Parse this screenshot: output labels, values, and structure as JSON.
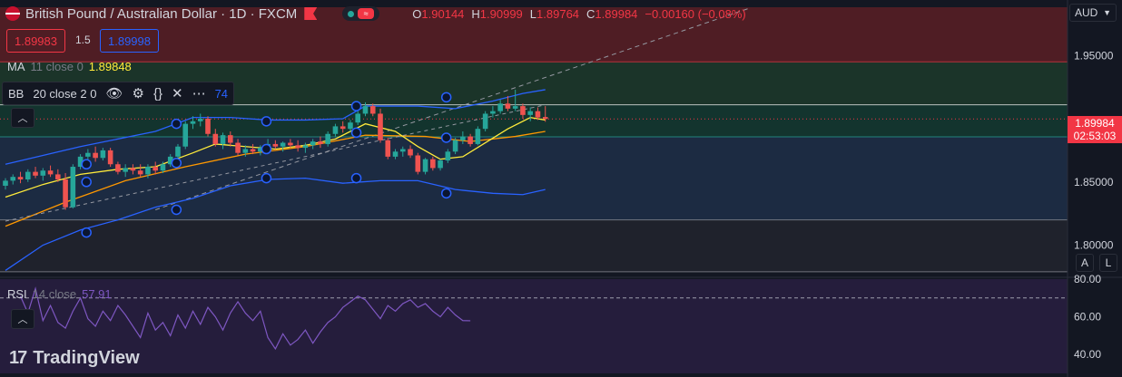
{
  "header": {
    "symbol": "British Pound / Australian Dollar · 1D · FXCM",
    "ohlc": {
      "o_label": "O",
      "o": "1.90144",
      "h_label": "H",
      "h": "1.90999",
      "l_label": "L",
      "l": "1.89764",
      "c_label": "C",
      "c": "1.89984",
      "chg": "−0.00160 (−0.08%)"
    }
  },
  "trade": {
    "sell": "1.89983",
    "spread": "1.5",
    "buy": "1.89998"
  },
  "indicators": {
    "ma": {
      "name": "MA",
      "params": "11 close 0",
      "value": "1.89848"
    },
    "bb": {
      "name": "BB",
      "params": "20 close 2 0",
      "value": "74"
    },
    "rsi": {
      "name": "RSI",
      "params": "14 close",
      "value": "57.91"
    }
  },
  "axis": {
    "currency": "AUD",
    "price_ticks": [
      "1.95000",
      "1.85000",
      "1.80000"
    ],
    "rsi_ticks": [
      "80.00",
      "60.00",
      "40.00"
    ],
    "last_price": "1.89984",
    "countdown": "02:53:03",
    "auto_label": "A",
    "log_label": "L"
  },
  "branding": {
    "name": "TradingView"
  },
  "colors": {
    "up": "#26a69a",
    "down": "#ef5350",
    "bb": "#2962ff",
    "ma": "#ffeb3b",
    "ma2": "#ff9800",
    "rsi": "#7e57c2",
    "accent": "#f23645"
  },
  "chart_data": {
    "type": "candlestick",
    "y_range": [
      1.776,
      1.9882
    ],
    "rsi_range": [
      30,
      80
    ],
    "zones": [
      {
        "from": 1.945,
        "to": 1.9882,
        "color": "#5a1f25"
      },
      {
        "from": 1.911,
        "to": 1.945,
        "color": "#1d3a2a"
      },
      {
        "from": 1.8857,
        "to": 1.911,
        "color": "#143a30"
      },
      {
        "from": 1.82,
        "to": 1.8857,
        "color": "#1e2f48"
      },
      {
        "from": 1.779,
        "to": 1.82,
        "color": "#22252e"
      }
    ],
    "hlines": [
      1.945,
      1.911,
      1.8857,
      1.82,
      1.779
    ],
    "candles": [
      [
        1.847,
        1.853,
        1.844,
        1.851
      ],
      [
        1.851,
        1.856,
        1.848,
        1.854
      ],
      [
        1.854,
        1.858,
        1.849,
        1.852
      ],
      [
        1.852,
        1.86,
        1.85,
        1.858
      ],
      [
        1.858,
        1.862,
        1.853,
        1.855
      ],
      [
        1.855,
        1.861,
        1.851,
        1.859
      ],
      [
        1.859,
        1.863,
        1.854,
        1.856
      ],
      [
        1.856,
        1.86,
        1.85,
        1.852
      ],
      [
        1.852,
        1.857,
        1.828,
        1.83
      ],
      [
        1.83,
        1.864,
        1.829,
        1.862
      ],
      [
        1.862,
        1.872,
        1.86,
        1.87
      ],
      [
        1.87,
        1.876,
        1.866,
        1.873
      ],
      [
        1.873,
        1.878,
        1.866,
        1.869
      ],
      [
        1.869,
        1.877,
        1.867,
        1.875
      ],
      [
        1.875,
        1.877,
        1.862,
        1.864
      ],
      [
        1.864,
        1.866,
        1.856,
        1.858
      ],
      [
        1.858,
        1.864,
        1.854,
        1.861
      ],
      [
        1.861,
        1.864,
        1.856,
        1.859
      ],
      [
        1.859,
        1.864,
        1.854,
        1.856
      ],
      [
        1.856,
        1.864,
        1.853,
        1.862
      ],
      [
        1.862,
        1.866,
        1.856,
        1.859
      ],
      [
        1.859,
        1.866,
        1.857,
        1.864
      ],
      [
        1.864,
        1.872,
        1.862,
        1.87
      ],
      [
        1.87,
        1.88,
        1.868,
        1.878
      ],
      [
        1.878,
        1.898,
        1.876,
        1.896
      ],
      [
        1.896,
        1.902,
        1.892,
        1.898
      ],
      [
        1.898,
        1.904,
        1.894,
        1.9
      ],
      [
        1.9,
        1.902,
        1.886,
        1.888
      ],
      [
        1.888,
        1.892,
        1.878,
        1.88
      ],
      [
        1.88,
        1.889,
        1.876,
        1.887
      ],
      [
        1.887,
        1.89,
        1.878,
        1.881
      ],
      [
        1.881,
        1.884,
        1.871,
        1.873
      ],
      [
        1.873,
        1.879,
        1.87,
        1.876
      ],
      [
        1.876,
        1.88,
        1.872,
        1.874
      ],
      [
        1.874,
        1.879,
        1.871,
        1.877
      ],
      [
        1.877,
        1.884,
        1.875,
        1.88
      ],
      [
        1.88,
        1.883,
        1.876,
        1.878
      ],
      [
        1.878,
        1.882,
        1.874,
        1.881
      ],
      [
        1.881,
        1.884,
        1.877,
        1.879
      ],
      [
        1.879,
        1.883,
        1.874,
        1.877
      ],
      [
        1.877,
        1.881,
        1.873,
        1.879
      ],
      [
        1.879,
        1.884,
        1.876,
        1.882
      ],
      [
        1.882,
        1.886,
        1.877,
        1.88
      ],
      [
        1.88,
        1.89,
        1.878,
        1.888
      ],
      [
        1.888,
        1.896,
        1.886,
        1.894
      ],
      [
        1.894,
        1.898,
        1.889,
        1.892
      ],
      [
        1.892,
        1.899,
        1.89,
        1.897
      ],
      [
        1.897,
        1.906,
        1.895,
        1.904
      ],
      [
        1.904,
        1.913,
        1.902,
        1.91
      ],
      [
        1.91,
        1.912,
        1.902,
        1.904
      ],
      [
        1.904,
        1.908,
        1.881,
        1.883
      ],
      [
        1.883,
        1.885,
        1.868,
        1.87
      ],
      [
        1.87,
        1.876,
        1.868,
        1.874
      ],
      [
        1.874,
        1.878,
        1.87,
        1.876
      ],
      [
        1.876,
        1.879,
        1.869,
        1.871
      ],
      [
        1.871,
        1.873,
        1.856,
        1.858
      ],
      [
        1.858,
        1.869,
        1.856,
        1.868
      ],
      [
        1.868,
        1.87,
        1.859,
        1.861
      ],
      [
        1.861,
        1.868,
        1.859,
        1.867
      ],
      [
        1.867,
        1.876,
        1.865,
        1.874
      ],
      [
        1.874,
        1.885,
        1.872,
        1.883
      ],
      [
        1.883,
        1.89,
        1.88,
        1.886
      ],
      [
        1.886,
        1.888,
        1.878,
        1.88
      ],
      [
        1.88,
        1.894,
        1.879,
        1.892
      ],
      [
        1.892,
        1.906,
        1.89,
        1.904
      ],
      [
        1.904,
        1.91,
        1.901,
        1.906
      ],
      [
        1.906,
        1.915,
        1.904,
        1.912
      ],
      [
        1.912,
        1.918,
        1.906,
        1.908
      ],
      [
        1.908,
        1.923,
        1.906,
        1.91
      ],
      [
        1.91,
        1.912,
        1.9,
        1.903
      ],
      [
        1.903,
        1.909,
        1.898,
        1.906
      ],
      [
        1.906,
        1.909,
        1.899,
        1.901
      ],
      [
        1.9014,
        1.91,
        1.8976,
        1.8998
      ]
    ],
    "bb_upper": [
      [
        0,
        1.864
      ],
      [
        10,
        1.878
      ],
      [
        20,
        1.89
      ],
      [
        25,
        1.901
      ],
      [
        30,
        1.901
      ],
      [
        35,
        1.899
      ],
      [
        40,
        1.899
      ],
      [
        45,
        1.9
      ],
      [
        48,
        1.91
      ],
      [
        55,
        1.91
      ],
      [
        60,
        1.908
      ],
      [
        65,
        1.914
      ],
      [
        69,
        1.92
      ],
      [
        72,
        1.923
      ]
    ],
    "bb_lower": [
      [
        0,
        1.78
      ],
      [
        5,
        1.8
      ],
      [
        10,
        1.812
      ],
      [
        15,
        1.82
      ],
      [
        20,
        1.83
      ],
      [
        25,
        1.837
      ],
      [
        30,
        1.847
      ],
      [
        35,
        1.852
      ],
      [
        40,
        1.853
      ],
      [
        45,
        1.849
      ],
      [
        50,
        1.851
      ],
      [
        55,
        1.851
      ],
      [
        60,
        1.844
      ],
      [
        65,
        1.841
      ],
      [
        69,
        1.84
      ],
      [
        72,
        1.844
      ]
    ],
    "ma_yellow": [
      [
        0,
        1.838
      ],
      [
        5,
        1.848
      ],
      [
        10,
        1.856
      ],
      [
        15,
        1.86
      ],
      [
        20,
        1.862
      ],
      [
        25,
        1.873
      ],
      [
        28,
        1.88
      ],
      [
        32,
        1.878
      ],
      [
        36,
        1.876
      ],
      [
        40,
        1.879
      ],
      [
        44,
        1.884
      ],
      [
        48,
        1.896
      ],
      [
        52,
        1.89
      ],
      [
        55,
        1.878
      ],
      [
        58,
        1.868
      ],
      [
        61,
        1.87
      ],
      [
        64,
        1.881
      ],
      [
        67,
        1.892
      ],
      [
        70,
        1.901
      ],
      [
        72,
        1.899
      ]
    ],
    "ma_orange": [
      [
        0,
        1.815
      ],
      [
        8,
        1.834
      ],
      [
        16,
        1.851
      ],
      [
        24,
        1.862
      ],
      [
        32,
        1.872
      ],
      [
        40,
        1.878
      ],
      [
        48,
        1.887
      ],
      [
        56,
        1.886
      ],
      [
        62,
        1.882
      ],
      [
        68,
        1.886
      ],
      [
        72,
        1.89
      ]
    ],
    "trendline": [
      [
        0,
        1.819
      ],
      [
        72,
        1.911
      ]
    ],
    "dashed_line": [
      [
        20,
        1.828
      ],
      [
        99,
        1.987
      ]
    ],
    "bb_markers": [
      [
        9,
        1.864
      ],
      [
        9,
        1.85
      ],
      [
        9,
        1.81
      ],
      [
        19,
        1.896
      ],
      [
        19,
        1.865
      ],
      [
        19,
        1.828
      ],
      [
        29,
        1.898
      ],
      [
        29,
        1.876
      ],
      [
        29,
        1.853
      ],
      [
        39,
        1.91
      ],
      [
        39,
        1.889
      ],
      [
        39,
        1.853
      ],
      [
        49,
        1.917
      ],
      [
        49,
        1.885
      ],
      [
        49,
        1.841
      ]
    ],
    "rsi": [
      [
        4,
        71
      ],
      [
        6,
        62
      ],
      [
        8,
        75
      ],
      [
        10,
        58
      ],
      [
        12,
        66
      ],
      [
        14,
        57
      ],
      [
        16,
        54
      ],
      [
        18,
        63
      ],
      [
        20,
        70
      ],
      [
        22,
        59
      ],
      [
        24,
        55
      ],
      [
        26,
        63
      ],
      [
        28,
        58
      ],
      [
        30,
        66
      ],
      [
        32,
        61
      ],
      [
        34,
        55
      ],
      [
        36,
        49
      ],
      [
        38,
        62
      ],
      [
        40,
        53
      ],
      [
        42,
        57
      ],
      [
        44,
        50
      ],
      [
        46,
        61
      ],
      [
        48,
        54
      ],
      [
        50,
        63
      ],
      [
        52,
        56
      ],
      [
        54,
        65
      ],
      [
        56,
        60
      ],
      [
        58,
        53
      ],
      [
        60,
        62
      ],
      [
        62,
        68
      ],
      [
        64,
        62
      ],
      [
        66,
        58
      ],
      [
        68,
        63
      ],
      [
        70,
        49
      ],
      [
        72,
        43
      ],
      [
        74,
        51
      ],
      [
        76,
        45
      ],
      [
        78,
        48
      ],
      [
        80,
        53
      ],
      [
        82,
        46
      ],
      [
        84,
        52
      ],
      [
        86,
        57
      ],
      [
        88,
        60
      ],
      [
        90,
        65
      ],
      [
        92,
        68
      ],
      [
        94,
        71
      ],
      [
        96,
        69
      ],
      [
        98,
        64
      ],
      [
        100,
        59
      ],
      [
        102,
        66
      ],
      [
        104,
        63
      ],
      [
        106,
        67
      ],
      [
        108,
        69
      ],
      [
        110,
        65
      ],
      [
        112,
        67
      ],
      [
        114,
        63
      ],
      [
        116,
        60
      ],
      [
        118,
        65
      ],
      [
        120,
        61
      ],
      [
        122,
        58
      ],
      [
        124,
        57.91
      ]
    ]
  }
}
